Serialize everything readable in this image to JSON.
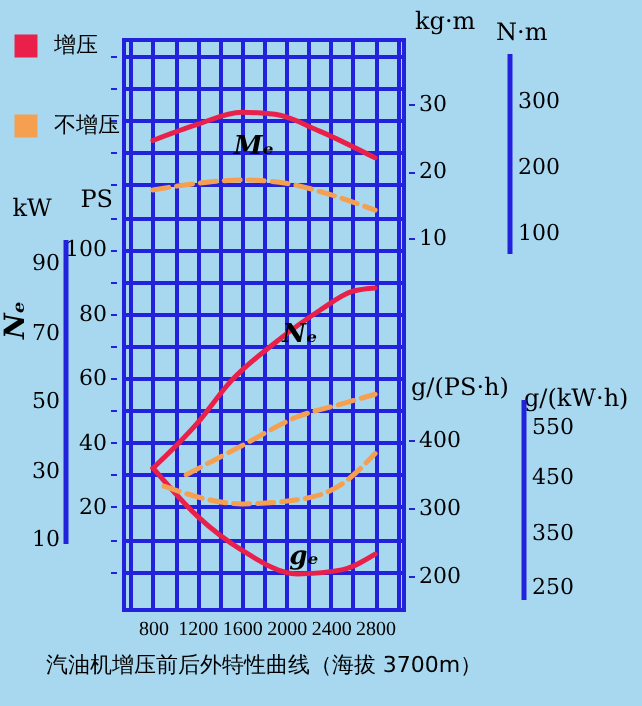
{
  "chart_data": {
    "type": "line",
    "title": "汽油机增压前后外特性曲线（海拔 3700m）",
    "ylabel": "PS",
    "y2label": "kg·m",
    "y3label": "g/(PS·h)",
    "xlim": [
      540,
      3060
    ],
    "xticks": [
      {
        "value": 600,
        "label": null
      },
      800,
      {
        "value": 1000,
        "label": null
      },
      1200,
      {
        "value": 1400,
        "label": null
      },
      1600,
      {
        "value": 1800,
        "label": null
      },
      2000,
      {
        "value": 2200,
        "label": null
      },
      2400,
      {
        "value": 2600,
        "label": null
      },
      2800,
      {
        "value": 3000,
        "label": null
      }
    ],
    "ylim": [
      -12,
      165
    ],
    "yticks": [
      {
        "value": 0,
        "label": null
      },
      {
        "value": 10,
        "label": null
      },
      20,
      {
        "value": 30,
        "label": null
      },
      40,
      {
        "value": 50,
        "label": null
      },
      60,
      {
        "value": 70,
        "label": null
      },
      80,
      {
        "value": 90,
        "label": null
      },
      100,
      {
        "value": 110,
        "label": null
      },
      {
        "value": 120,
        "label": null
      },
      {
        "value": 130,
        "label": null
      },
      {
        "value": 140,
        "label": null
      },
      {
        "value": 150,
        "label": null
      },
      {
        "value": 160,
        "label": null
      }
    ],
    "y2lim": [
      -45.5,
      39.6
    ],
    "y2ticks": [
      10,
      20,
      30
    ],
    "y3lim": [
      150,
      988
    ],
    "y3ticks": [
      200,
      300,
      400
    ],
    "grid": true,
    "legend": "top left",
    "marker": "none",
    "series": [
      {
        "name": "增压",
        "color": "#e8204a",
        "axis": "y2",
        "line_style": "solid",
        "x": [
          800,
          1200,
          1600,
          1900,
          2300,
          2800
        ],
        "values": [
          24.6,
          27,
          28.8,
          28.5,
          26,
          22
        ]
      },
      {
        "name": "不增压",
        "color": "#f5a050",
        "axis": "y2",
        "line_style": "dashed",
        "x": [
          800,
          1200,
          1600,
          2000,
          2400,
          2800
        ],
        "values": [
          17.2,
          18.2,
          18.7,
          18.2,
          16.5,
          14.2
        ]
      },
      {
        "color": "#e8204a",
        "line_style": "solid",
        "x": [
          800,
          1200,
          1500,
          1900,
          2300,
          2600,
          2800
        ],
        "values": [
          32,
          46,
          59,
          71,
          81,
          87,
          88
        ]
      },
      {
        "color": "#f5a050",
        "line_style": "dashed",
        "x": [
          1100,
          1600,
          2100,
          2500,
          2800
        ],
        "values": [
          30,
          39,
          48,
          52,
          55
        ]
      },
      {
        "color": "#e8204a",
        "axis": "y3",
        "line_style": "solid",
        "x": [
          800,
          1200,
          1600,
          2100,
          2500,
          2800
        ],
        "values": [
          359,
          288,
          238,
          203,
          209,
          232
        ]
      },
      {
        "color": "#f5a050",
        "axis": "y3",
        "line_style": "dashed",
        "x": [
          900,
          1600,
          2100,
          2500,
          2800
        ],
        "values": [
          332,
          306,
          312,
          335,
          380
        ]
      }
    ],
    "annotations": [
      "Mₑ",
      "Nₑ",
      "gₑ",
      "Nₑ",
      "kW",
      "90",
      "70",
      "50",
      "30",
      "10",
      "N·m",
      "300",
      "200",
      "100",
      "g/(kW·h)",
      "550",
      "450",
      "350",
      "250"
    ]
  }
}
